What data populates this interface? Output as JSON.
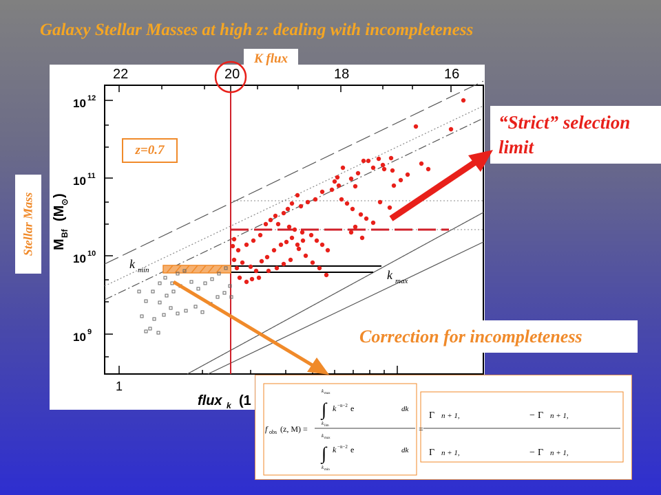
{
  "slide": {
    "title": "Galaxy Stellar Masses at high z: dealing with incompleteness",
    "kflux_label": "K flux",
    "stellar_mass_label": "Stellar Mass",
    "strict_label_line1": "“Strict” selection",
    "strict_label_line2": "limit",
    "correction_label": "Correction for incompleteness",
    "z_label": "z=0.7"
  },
  "plot": {
    "top_axis_ticks": [
      "22",
      "20",
      "18",
      "16"
    ],
    "bottom_axis_ticks": [
      "1"
    ],
    "y_axis_ticks": [
      "10",
      "10",
      "10",
      "10"
    ],
    "y_axis_exponents": [
      "12",
      "11",
      "10",
      "9"
    ],
    "y_axis_label": "M",
    "y_axis_label_sub": "Bf",
    "y_axis_label_unit": "(M",
    "y_axis_label_unit_sub": "⊙",
    "y_axis_label_close": ")",
    "x_axis_label": "flux",
    "x_axis_label_sub": "k",
    "x_axis_label_cont": "(1",
    "kmin_label": "k",
    "kmin_sub": "min",
    "kmax_label": "k",
    "kmax_sub": "max"
  },
  "formula": {
    "lhs": "f",
    "lhs_sub": "obs",
    "lhs_args": "(z, M) =",
    "equals": "=",
    "gamma": "Γ",
    "minus": "−",
    "kmax": "k",
    "kmax_sub": "max",
    "klim_sub": "lim",
    "kmin_sub": "min",
    "integrand": "k",
    "integrand_exp": "−n−2",
    "exp_e": "e",
    "dk": "dk",
    "gamma_n": "n + 1,"
  },
  "colors": {
    "accent_orange": "#f08a2a",
    "accent_red": "#e8201a",
    "title_orange": "#f5a623"
  }
}
